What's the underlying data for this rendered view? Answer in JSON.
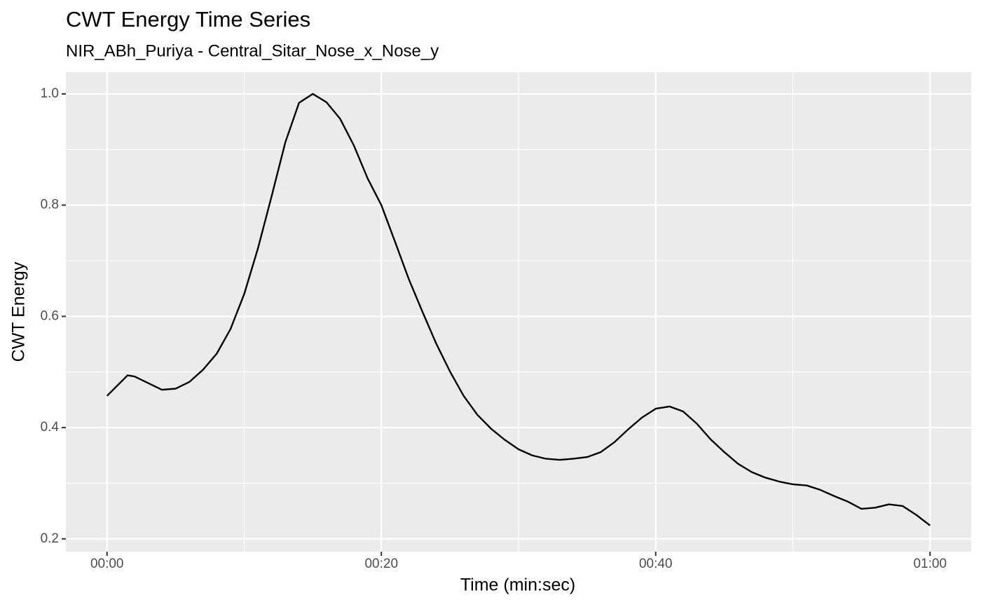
{
  "chart_data": {
    "type": "line",
    "title": "CWT Energy Time Series",
    "subtitle": "NIR_ABh_Puriya - Central_Sitar_Nose_x_Nose_y",
    "xlabel": "Time (min:sec)",
    "ylabel": "CWT Energy",
    "x": [
      0,
      1.5,
      2,
      3,
      4,
      5,
      6,
      7,
      8,
      9,
      10,
      11,
      12,
      13,
      14,
      15,
      16,
      17,
      18,
      19,
      20,
      21,
      22,
      23,
      24,
      25,
      26,
      27,
      28,
      29,
      30,
      31,
      32,
      33,
      34,
      35,
      36,
      37,
      38,
      39,
      40,
      41,
      42,
      43,
      44,
      45,
      46,
      47,
      48,
      49,
      50,
      51,
      52,
      53,
      54,
      55,
      56,
      57,
      58,
      59,
      60
    ],
    "series": [
      {
        "name": "CWT Energy",
        "color": "#000000",
        "values": [
          0.457,
          0.494,
          0.492,
          0.48,
          0.468,
          0.47,
          0.482,
          0.504,
          0.533,
          0.577,
          0.64,
          0.722,
          0.816,
          0.913,
          0.984,
          1.0,
          0.985,
          0.955,
          0.907,
          0.848,
          0.8,
          0.734,
          0.667,
          0.608,
          0.551,
          0.501,
          0.457,
          0.423,
          0.398,
          0.378,
          0.361,
          0.35,
          0.344,
          0.342,
          0.344,
          0.347,
          0.356,
          0.374,
          0.397,
          0.418,
          0.434,
          0.438,
          0.429,
          0.407,
          0.379,
          0.356,
          0.335,
          0.32,
          0.31,
          0.303,
          0.298,
          0.296,
          0.288,
          0.277,
          0.267,
          0.254,
          0.256,
          0.262,
          0.259,
          0.243,
          0.224
        ]
      }
    ],
    "xlim": [
      -3,
      63
    ],
    "ylim": [
      0.177,
      1.039
    ],
    "xticks": [
      {
        "value": 0,
        "label": "00:00"
      },
      {
        "value": 20,
        "label": "00:20"
      },
      {
        "value": 40,
        "label": "00:40"
      },
      {
        "value": 60,
        "label": "01:00"
      }
    ],
    "yticks": [
      0.2,
      0.4,
      0.6,
      0.8,
      {
        "value": 1,
        "label": "1.0"
      }
    ],
    "xminor": [
      10,
      30,
      50
    ],
    "yminor": [
      0.3,
      0.5,
      0.7,
      0.9
    ],
    "grid": true
  }
}
